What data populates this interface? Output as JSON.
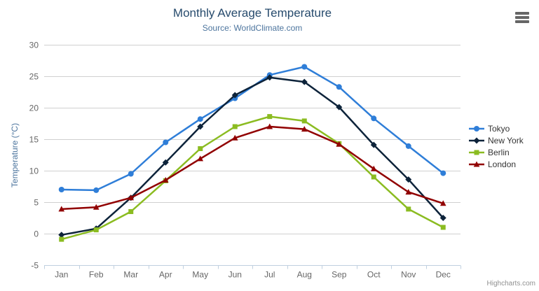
{
  "chart_data": {
    "type": "line",
    "title": "Monthly Average Temperature",
    "subtitle": "Source: WorldClimate.com",
    "categories": [
      "Jan",
      "Feb",
      "Mar",
      "Apr",
      "May",
      "Jun",
      "Jul",
      "Aug",
      "Sep",
      "Oct",
      "Nov",
      "Dec"
    ],
    "series": [
      {
        "name": "Tokyo",
        "color": "#2f7ed8",
        "marker": "circle",
        "values": [
          7.0,
          6.9,
          9.5,
          14.5,
          18.2,
          21.5,
          25.2,
          26.5,
          23.3,
          18.3,
          13.9,
          9.6
        ]
      },
      {
        "name": "New York",
        "color": "#0d233a",
        "marker": "diamond",
        "values": [
          -0.2,
          0.8,
          5.7,
          11.3,
          17.0,
          22.0,
          24.8,
          24.1,
          20.1,
          14.1,
          8.6,
          2.5
        ]
      },
      {
        "name": "Berlin",
        "color": "#8bbc21",
        "marker": "square",
        "values": [
          -0.9,
          0.6,
          3.5,
          8.4,
          13.5,
          17.0,
          18.6,
          17.9,
          14.3,
          9.0,
          3.9,
          1.0
        ]
      },
      {
        "name": "London",
        "color": "#910000",
        "marker": "triangle",
        "values": [
          3.9,
          4.2,
          5.7,
          8.5,
          11.9,
          15.2,
          17.0,
          16.6,
          14.2,
          10.3,
          6.6,
          4.8
        ]
      }
    ],
    "xlabel": "",
    "ylabel": "Temperature (°C)",
    "ylim": [
      -5,
      30
    ],
    "ytick_interval": 5,
    "grid": true,
    "legend_position": "right"
  },
  "icons": {
    "export_menu": "hamburger"
  },
  "colors": {
    "title": "#274b6d",
    "subtitle": "#4d759e",
    "axis_labels": "#666666",
    "gridline": "#d0d0d0",
    "axis_line": "#c0d0e0",
    "legend_text": "#333333",
    "credits_text": "#909090"
  },
  "credits": {
    "text": "Highcharts.com"
  }
}
